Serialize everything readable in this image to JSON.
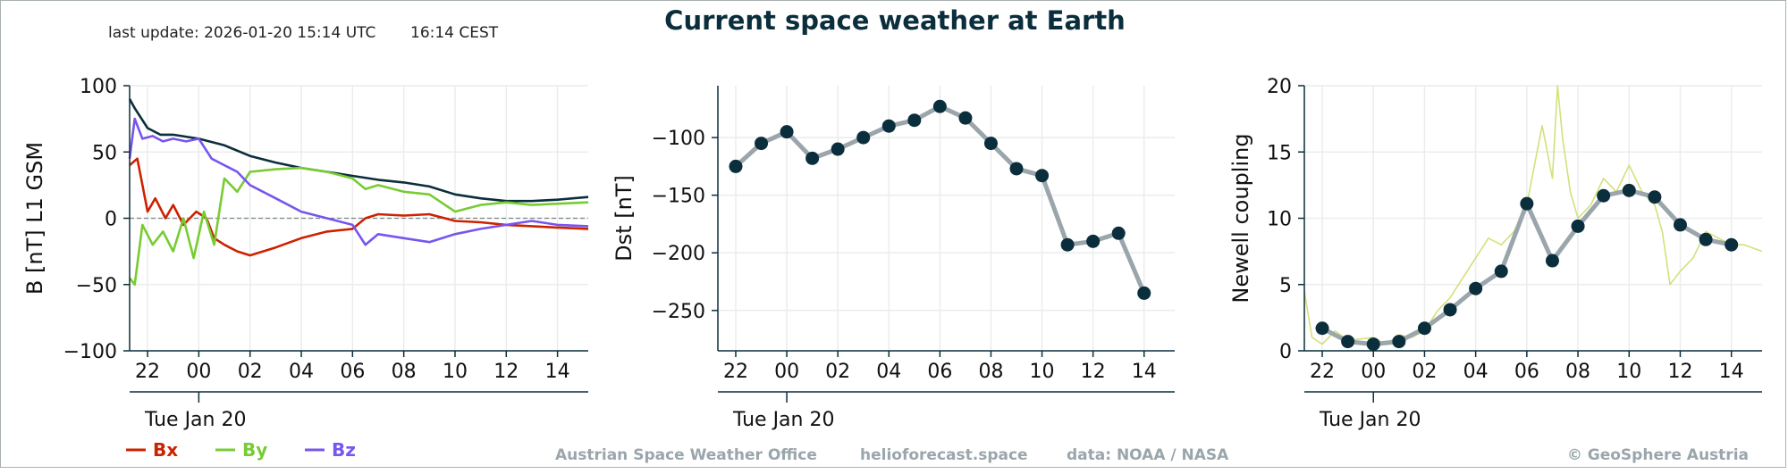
{
  "header": {
    "title": "Current space weather at Earth",
    "last_update": "last update: 2026-01-20 15:14 UTC",
    "local_time": "16:14 CEST"
  },
  "footer": {
    "office": "Austrian Space Weather Office",
    "site": "helioforecast.space",
    "source": "data: NOAA / NASA",
    "copyright": "© GeoSphere Austria"
  },
  "colors": {
    "title": "#0b2e3c",
    "axis": "#0b2e3c",
    "grid": "#ececec",
    "bx": "#cc2200",
    "by": "#77cc33",
    "bz": "#7755ee",
    "bt": "#0b2e3c",
    "dst_line": "#9aa6ab",
    "marker": "#0b2e3c",
    "newell_line": "#d4e07a",
    "footer_text": "#9aa6ab"
  },
  "chart_data": [
    {
      "type": "line",
      "id": "mag",
      "ylabel": "B [nT] L1 GSM",
      "ylim": [
        -100,
        100
      ],
      "yticks": [
        -100,
        -50,
        0,
        50,
        100
      ],
      "xticks": [
        "22",
        "00",
        "02",
        "04",
        "06",
        "08",
        "10",
        "12",
        "14"
      ],
      "date_label": "Tue Jan 20",
      "xlim": [
        21.3,
        39.2
      ],
      "tick_hours": [
        22,
        24,
        26,
        28,
        30,
        32,
        34,
        36,
        38
      ],
      "zero_line": true,
      "legend": [
        {
          "key": "bx",
          "label": "Bx"
        },
        {
          "key": "by",
          "label": "By"
        },
        {
          "key": "bz",
          "label": "Bz"
        }
      ],
      "series": [
        {
          "key": "bt",
          "x": [
            21.3,
            21.5,
            22.0,
            22.5,
            23.0,
            24.0,
            25.0,
            26.0,
            27.0,
            28.0,
            29.0,
            30.0,
            31.0,
            32.0,
            33.0,
            34.0,
            35.0,
            36.0,
            37.0,
            38.0,
            39.2
          ],
          "y": [
            90,
            83,
            68,
            63,
            63,
            60,
            55,
            47,
            42,
            38,
            35,
            32,
            29,
            27,
            24,
            18,
            15,
            13,
            13,
            14,
            16
          ]
        },
        {
          "key": "bx",
          "x": [
            21.3,
            21.6,
            22.0,
            22.3,
            22.7,
            23.0,
            23.4,
            23.9,
            24.3,
            24.6,
            25.0,
            25.5,
            26.0,
            27.0,
            28.0,
            29.0,
            30.0,
            30.5,
            31.0,
            32.0,
            33.0,
            34.0,
            35.0,
            36.0,
            37.0,
            38.0,
            39.2
          ],
          "y": [
            40,
            45,
            5,
            15,
            0,
            10,
            -5,
            5,
            0,
            -15,
            -20,
            -25,
            -28,
            -22,
            -15,
            -10,
            -8,
            0,
            3,
            2,
            3,
            -2,
            -3,
            -5,
            -6,
            -7,
            -8
          ]
        },
        {
          "key": "by",
          "x": [
            21.3,
            21.5,
            21.8,
            22.2,
            22.6,
            23.0,
            23.4,
            23.8,
            24.2,
            24.6,
            25.0,
            25.5,
            26.0,
            27.0,
            28.0,
            29.0,
            30.0,
            30.5,
            31.0,
            32.0,
            33.0,
            34.0,
            35.0,
            36.0,
            37.0,
            38.0,
            39.2
          ],
          "y": [
            -45,
            -50,
            -5,
            -20,
            -10,
            -25,
            0,
            -30,
            5,
            -20,
            30,
            20,
            35,
            37,
            38,
            35,
            30,
            22,
            25,
            20,
            18,
            5,
            10,
            12,
            10,
            11,
            12
          ]
        },
        {
          "key": "bz",
          "x": [
            21.3,
            21.5,
            21.8,
            22.2,
            22.6,
            23.0,
            23.5,
            24.0,
            24.5,
            25.0,
            25.5,
            26.0,
            27.0,
            28.0,
            29.0,
            30.0,
            30.5,
            31.0,
            32.0,
            33.0,
            34.0,
            35.0,
            36.0,
            37.0,
            38.0,
            39.2
          ],
          "y": [
            45,
            75,
            60,
            62,
            58,
            60,
            58,
            60,
            45,
            40,
            35,
            25,
            15,
            5,
            0,
            -5,
            -20,
            -12,
            -15,
            -18,
            -12,
            -8,
            -5,
            -2,
            -5,
            -6
          ]
        }
      ]
    },
    {
      "type": "line",
      "id": "dst",
      "ylabel": "Dst [nT]",
      "ylim": [
        -285,
        -55
      ],
      "yticks": [
        -250,
        -200,
        -150,
        -100
      ],
      "xticks": [
        "22",
        "00",
        "02",
        "04",
        "06",
        "08",
        "10",
        "12",
        "14"
      ],
      "date_label": "Tue Jan 20",
      "xlim": [
        21.3,
        39.2
      ],
      "tick_hours": [
        22,
        24,
        26,
        28,
        30,
        32,
        34,
        36,
        38
      ],
      "series": [
        {
          "key": "dst",
          "x": [
            22,
            23,
            24,
            25,
            26,
            27,
            28,
            29,
            30,
            31,
            32,
            33,
            34,
            35,
            36,
            37,
            38
          ],
          "y": [
            -125,
            -105,
            -95,
            -118,
            -110,
            -100,
            -90,
            -85,
            -73,
            -83,
            -105,
            -127,
            -133,
            -193,
            -190,
            -183,
            -235
          ]
        }
      ]
    },
    {
      "type": "line",
      "id": "newell",
      "ylabel": "Newell coupling",
      "ylim": [
        0,
        20
      ],
      "yticks": [
        0,
        5,
        10,
        15,
        20
      ],
      "xticks": [
        "22",
        "00",
        "02",
        "04",
        "06",
        "08",
        "10",
        "12",
        "14"
      ],
      "date_label": "Tue Jan 20",
      "xlim": [
        21.3,
        39.2
      ],
      "tick_hours": [
        22,
        24,
        26,
        28,
        30,
        32,
        34,
        36,
        38
      ],
      "series": [
        {
          "key": "newell_raw",
          "x": [
            21.3,
            21.6,
            22.0,
            22.5,
            23.0,
            24.0,
            24.5,
            25.0,
            25.5,
            26.0,
            26.5,
            27.0,
            27.5,
            28.0,
            28.5,
            29.0,
            29.5,
            30.0,
            30.3,
            30.6,
            31.0,
            31.2,
            31.4,
            31.7,
            32.0,
            32.5,
            33.0,
            33.5,
            34.0,
            34.5,
            35.0,
            35.3,
            35.6,
            36.0,
            36.5,
            37.0,
            37.5,
            38.0,
            38.5,
            39.2
          ],
          "y": [
            4.5,
            1,
            0.5,
            1.5,
            0.8,
            1,
            0.5,
            1.2,
            1,
            1.5,
            3,
            4,
            5.5,
            7,
            8.5,
            8,
            9,
            11,
            14,
            17,
            13,
            20,
            16,
            12,
            10,
            11,
            13,
            12,
            14,
            12,
            11,
            9,
            5,
            6,
            7,
            9,
            8.5,
            8,
            8,
            7.5
          ]
        },
        {
          "key": "newell_hourly",
          "x": [
            22,
            23,
            24,
            25,
            26,
            27,
            28,
            29,
            30,
            31,
            32,
            33,
            34,
            35,
            36,
            37,
            38
          ],
          "y": [
            1.7,
            0.7,
            0.5,
            0.7,
            1.7,
            3.1,
            4.7,
            6.0,
            11.1,
            6.8,
            9.4,
            11.7,
            12.1,
            11.6,
            9.5,
            8.4,
            8.0
          ]
        }
      ]
    }
  ]
}
